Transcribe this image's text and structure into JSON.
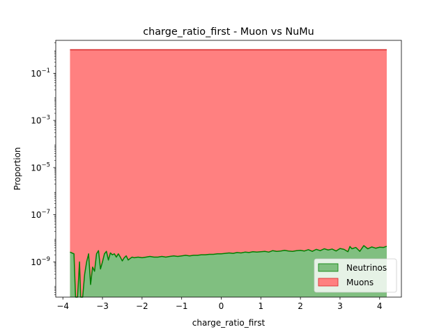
{
  "chart_data": {
    "type": "area",
    "title": "charge_ratio_first - Muon vs NuMu",
    "xlabel": "charge_ratio_first",
    "ylabel": "Proportion",
    "xlim": [
      -4.18,
      4.55
    ],
    "ylim": [
      3.2e-11,
      2.5
    ],
    "yscale": "log",
    "grid": false,
    "legend_position": "lower-right",
    "xticks": [
      {
        "value": -4,
        "label": "−4"
      },
      {
        "value": -3,
        "label": "−3"
      },
      {
        "value": -2,
        "label": "−2"
      },
      {
        "value": -1,
        "label": "−1"
      },
      {
        "value": 0,
        "label": "0"
      },
      {
        "value": 1,
        "label": "1"
      },
      {
        "value": 2,
        "label": "2"
      },
      {
        "value": 3,
        "label": "3"
      },
      {
        "value": 4,
        "label": "4"
      }
    ],
    "yticks": [
      {
        "value": 1e-09,
        "base": "10",
        "exp": "−9"
      },
      {
        "value": 1e-07,
        "base": "10",
        "exp": "−7"
      },
      {
        "value": 1e-05,
        "base": "10",
        "exp": "−5"
      },
      {
        "value": 0.001,
        "base": "10",
        "exp": "−3"
      },
      {
        "value": 0.1,
        "base": "10",
        "exp": "−1"
      }
    ],
    "series": [
      {
        "name": "Muons",
        "fill": "#ff8080",
        "line": "#d62728",
        "x": [
          -3.82,
          4.18
        ],
        "y": [
          1.0,
          1.0
        ]
      },
      {
        "name": "Neutrinos",
        "fill": "#80bf80",
        "line": "#007f00",
        "x": [
          -3.82,
          -3.72,
          -3.68,
          -3.63,
          -3.58,
          -3.55,
          -3.5,
          -3.45,
          -3.4,
          -3.35,
          -3.3,
          -3.25,
          -3.2,
          -3.15,
          -3.1,
          -3.05,
          -3.0,
          -2.95,
          -2.9,
          -2.85,
          -2.8,
          -2.75,
          -2.7,
          -2.65,
          -2.6,
          -2.55,
          -2.5,
          -2.45,
          -2.4,
          -2.35,
          -2.3,
          -2.25,
          -2.2,
          -2.1,
          -2.0,
          -1.9,
          -1.8,
          -1.7,
          -1.6,
          -1.5,
          -1.4,
          -1.3,
          -1.2,
          -1.1,
          -1.0,
          -0.9,
          -0.8,
          -0.7,
          -0.6,
          -0.5,
          -0.4,
          -0.3,
          -0.2,
          -0.1,
          0.0,
          0.1,
          0.2,
          0.3,
          0.4,
          0.5,
          0.6,
          0.7,
          0.8,
          0.9,
          1.0,
          1.1,
          1.2,
          1.3,
          1.4,
          1.5,
          1.6,
          1.7,
          1.8,
          1.9,
          2.0,
          2.1,
          2.2,
          2.3,
          2.4,
          2.5,
          2.6,
          2.7,
          2.8,
          2.9,
          3.0,
          3.1,
          3.2,
          3.25,
          3.3,
          3.4,
          3.5,
          3.6,
          3.7,
          3.8,
          3.9,
          4.0,
          4.1,
          4.18
        ],
        "y": [
          2.6e-09,
          2.2e-09,
          1e-11,
          1e-11,
          1e-09,
          1e-11,
          1e-11,
          3e-10,
          1e-09,
          2.2e-09,
          1.1e-10,
          6e-10,
          4e-10,
          2.2e-09,
          3e-09,
          5e-10,
          1e-09,
          2.2e-09,
          2.8e-09,
          1.2e-09,
          2.4e-09,
          2e-09,
          2.2e-09,
          1.6e-09,
          2.2e-09,
          1.6e-09,
          1.1e-09,
          1.5e-09,
          1.8e-09,
          1.2e-09,
          1.4e-09,
          1.6e-09,
          1.5e-09,
          1.6e-09,
          1.5e-09,
          1.6e-09,
          1.7e-09,
          1.6e-09,
          1.6e-09,
          1.7e-09,
          1.6e-09,
          1.7e-09,
          1.8e-09,
          1.7e-09,
          1.8e-09,
          1.9e-09,
          1.8e-09,
          1.9e-09,
          1.9e-09,
          2e-09,
          2e-09,
          2.1e-09,
          2.1e-09,
          2.2e-09,
          2.2e-09,
          2.3e-09,
          2.4e-09,
          2.3e-09,
          2.5e-09,
          2.4e-09,
          2.6e-09,
          2.5e-09,
          2.7e-09,
          2.6e-09,
          2.7e-09,
          2.8e-09,
          2.6e-09,
          3e-09,
          2.8e-09,
          2.9e-09,
          3.1e-09,
          2.9e-09,
          2.8e-09,
          3e-09,
          3.1e-09,
          2.9e-09,
          3.3e-09,
          2.8e-09,
          3.4e-09,
          3e-09,
          3.6e-09,
          3.2e-09,
          3.5e-09,
          2.9e-09,
          3.7e-09,
          3.4e-09,
          2.7e-09,
          4.5e-09,
          3.6e-09,
          4.1e-09,
          2.8e-09,
          4.9e-09,
          3.6e-09,
          4.3e-09,
          3.8e-09,
          4.2e-09,
          4.1e-09,
          4.6e-09
        ]
      }
    ]
  }
}
